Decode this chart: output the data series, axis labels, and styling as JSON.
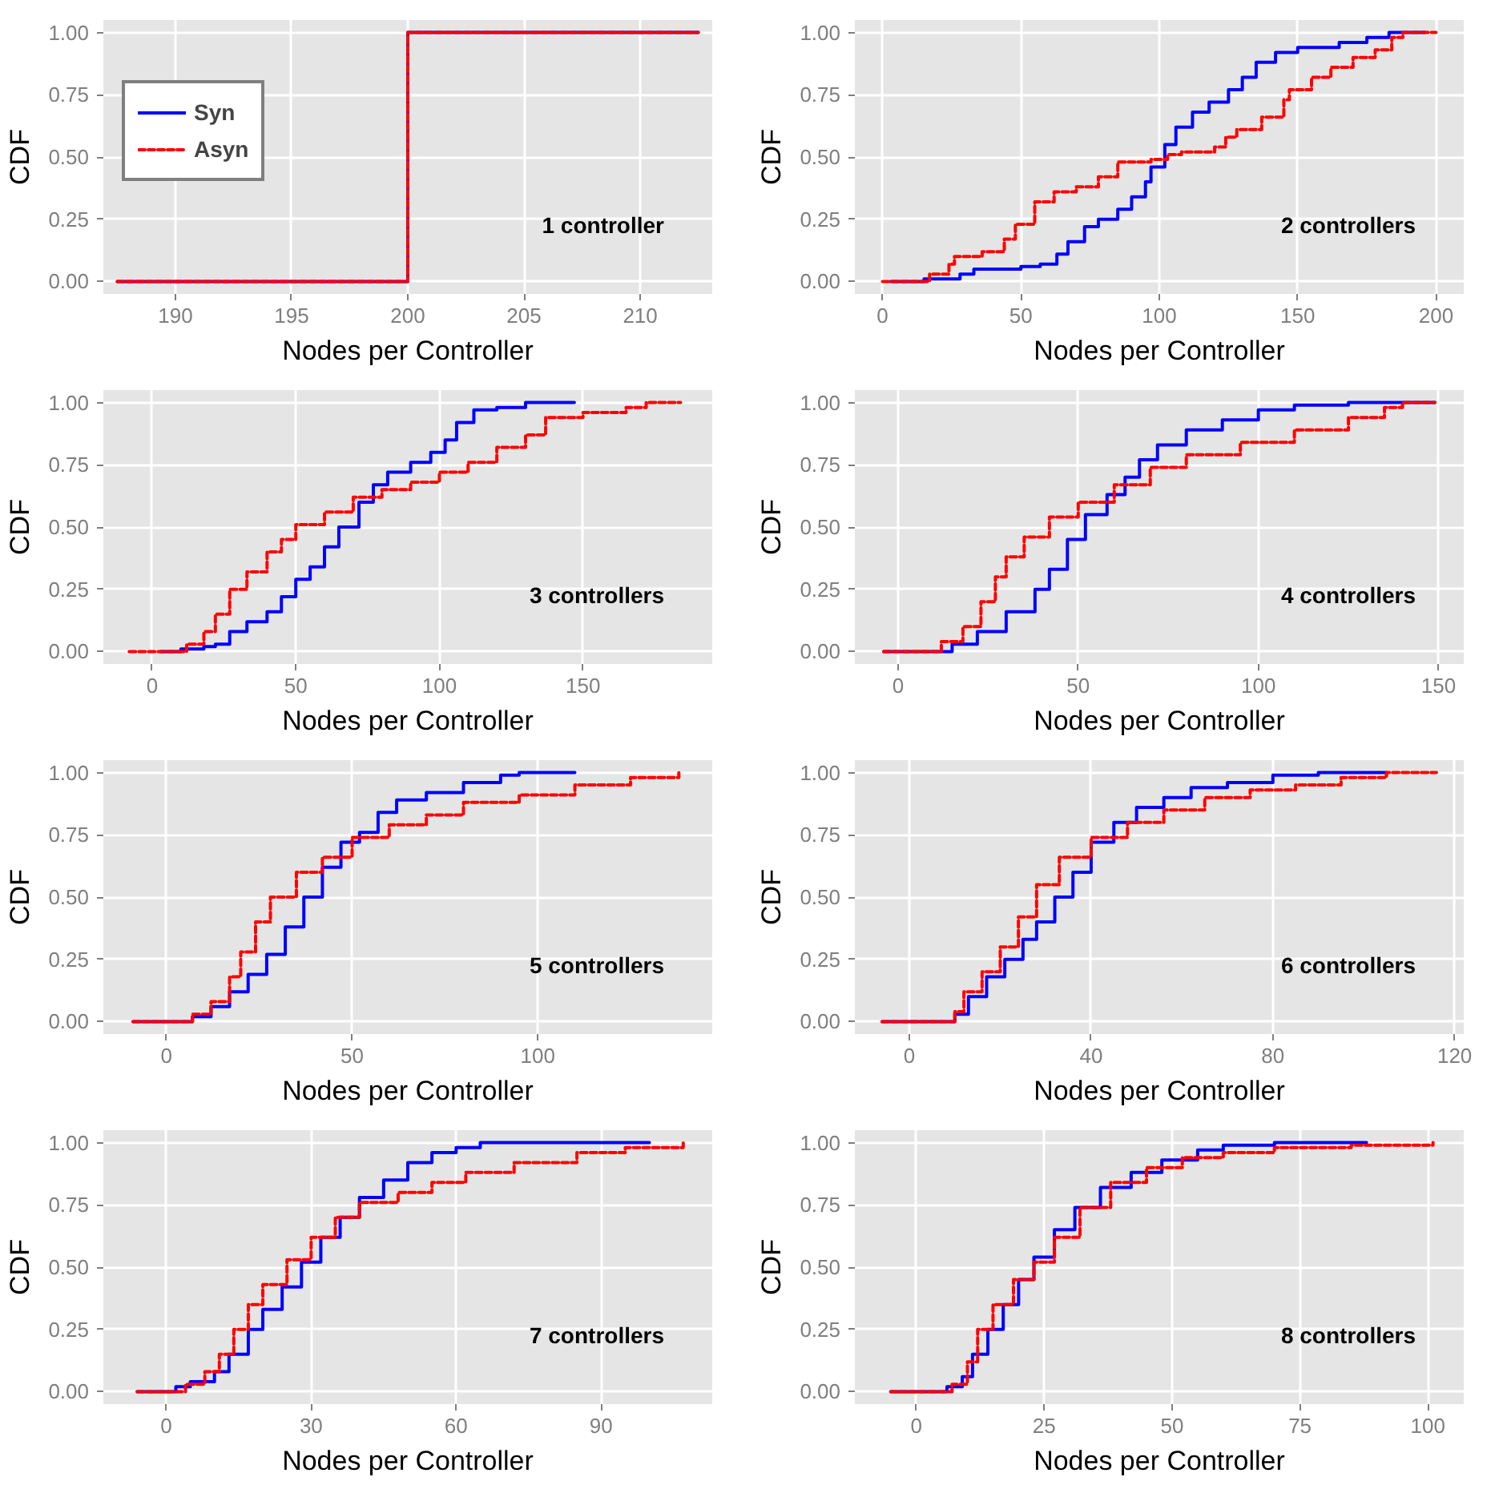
{
  "chart_data": [
    {
      "type": "step",
      "xlabel": "Nodes per Controller",
      "ylabel": "CDF",
      "annotations": [
        "1 controller"
      ],
      "xlim": [
        186.9,
        213.1
      ],
      "xticks": [
        190,
        195,
        200,
        205,
        210
      ],
      "ylim": [
        -0.05,
        1.05
      ],
      "yticks": [
        {
          "value": 0,
          "label": "0.00"
        },
        {
          "value": 0.25,
          "label": "0.25"
        },
        {
          "value": 0.5,
          "label": "0.50"
        },
        {
          "value": 0.75,
          "label": "0.75"
        },
        {
          "value": 1,
          "label": "1.00"
        }
      ],
      "grid": true,
      "legend": "top left",
      "series": [
        {
          "name": "Syn",
          "color": "#0000ff",
          "line_style": "solid",
          "x": [
            187.5,
            200,
            212.5
          ],
          "values": [
            0,
            1,
            1
          ]
        },
        {
          "name": "Asyn",
          "color": "#ff0000",
          "line_style": "dashed",
          "x": [
            187.5,
            200,
            212.5
          ],
          "values": [
            0,
            1,
            1
          ]
        }
      ]
    },
    {
      "type": "step",
      "xlabel": "Nodes per Controller",
      "ylabel": "CDF",
      "annotations": [
        "2 controllers"
      ],
      "xlim": [
        -10,
        210
      ],
      "xticks": [
        0,
        50,
        100,
        150,
        200
      ],
      "ylim": [
        -0.05,
        1.05
      ],
      "yticks": [
        {
          "value": 0,
          "label": "0.00"
        },
        {
          "value": 0.25,
          "label": "0.25"
        },
        {
          "value": 0.5,
          "label": "0.50"
        },
        {
          "value": 0.75,
          "label": "0.75"
        },
        {
          "value": 1,
          "label": "1.00"
        }
      ],
      "grid": true,
      "series": [
        {
          "color": "#0000ff",
          "line_style": "solid",
          "x": [
            3,
            15,
            28,
            33,
            50,
            57,
            63,
            67,
            73,
            78,
            85,
            90,
            95,
            97,
            102,
            106,
            112,
            118,
            125,
            130,
            135,
            142,
            150,
            165,
            175,
            183,
            196
          ],
          "values": [
            0,
            0.01,
            0.03,
            0.05,
            0.06,
            0.07,
            0.11,
            0.16,
            0.22,
            0.25,
            0.29,
            0.34,
            0.4,
            0.46,
            0.55,
            0.62,
            0.68,
            0.72,
            0.77,
            0.82,
            0.88,
            0.92,
            0.94,
            0.96,
            0.98,
            1,
            1
          ]
        },
        {
          "color": "#ff0000",
          "line_style": "dashed",
          "x": [
            0,
            13,
            17,
            24,
            26,
            36,
            44,
            48,
            55,
            62,
            70,
            78,
            85,
            97,
            103,
            108,
            120,
            124,
            128,
            137,
            145,
            147,
            155,
            162,
            170,
            178,
            184,
            188,
            200
          ],
          "values": [
            0,
            0,
            0.03,
            0.07,
            0.1,
            0.12,
            0.17,
            0.23,
            0.32,
            0.36,
            0.38,
            0.42,
            0.48,
            0.49,
            0.51,
            0.52,
            0.54,
            0.58,
            0.61,
            0.66,
            0.73,
            0.77,
            0.82,
            0.86,
            0.9,
            0.93,
            0.98,
            1,
            1
          ]
        }
      ]
    },
    {
      "type": "step",
      "xlabel": "Nodes per Controller",
      "ylabel": "CDF",
      "annotations": [
        "3 controllers"
      ],
      "xlim": [
        -17,
        195
      ],
      "xticks": [
        0,
        50,
        100,
        150
      ],
      "ylim": [
        -0.05,
        1.05
      ],
      "yticks": [
        {
          "value": 0,
          "label": "0.00"
        },
        {
          "value": 0.25,
          "label": "0.25"
        },
        {
          "value": 0.5,
          "label": "0.50"
        },
        {
          "value": 0.75,
          "label": "0.75"
        },
        {
          "value": 1,
          "label": "1.00"
        }
      ],
      "grid": true,
      "series": [
        {
          "color": "#0000ff",
          "line_style": "solid",
          "x": [
            3,
            10,
            18,
            22,
            27,
            33,
            40,
            45,
            50,
            55,
            60,
            65,
            72,
            77,
            82,
            90,
            97,
            102,
            106,
            112,
            120,
            130,
            147
          ],
          "values": [
            0,
            0.01,
            0.02,
            0.03,
            0.08,
            0.12,
            0.16,
            0.22,
            0.29,
            0.34,
            0.42,
            0.5,
            0.6,
            0.67,
            0.72,
            0.76,
            0.8,
            0.85,
            0.92,
            0.97,
            0.98,
            1,
            1
          ]
        },
        {
          "color": "#ff0000",
          "line_style": "dashed",
          "x": [
            -8,
            5,
            12,
            18,
            22,
            27,
            33,
            40,
            45,
            50,
            60,
            70,
            80,
            90,
            100,
            110,
            120,
            130,
            137,
            150,
            165,
            172,
            184
          ],
          "values": [
            0,
            0,
            0.03,
            0.08,
            0.15,
            0.25,
            0.32,
            0.4,
            0.45,
            0.51,
            0.56,
            0.62,
            0.65,
            0.68,
            0.72,
            0.76,
            0.82,
            0.87,
            0.94,
            0.96,
            0.98,
            1,
            1
          ]
        }
      ]
    },
    {
      "type": "step",
      "xlabel": "Nodes per Controller",
      "ylabel": "CDF",
      "annotations": [
        "4 controllers"
      ],
      "xlim": [
        -12,
        157
      ],
      "xticks": [
        0,
        50,
        100,
        150
      ],
      "ylim": [
        -0.05,
        1.05
      ],
      "yticks": [
        {
          "value": 0,
          "label": "0.00"
        },
        {
          "value": 0.25,
          "label": "0.25"
        },
        {
          "value": 0.5,
          "label": "0.50"
        },
        {
          "value": 0.75,
          "label": "0.75"
        },
        {
          "value": 1,
          "label": "1.00"
        }
      ],
      "grid": true,
      "series": [
        {
          "color": "#0000ff",
          "line_style": "solid",
          "x": [
            -4,
            8,
            15,
            22,
            30,
            38,
            42,
            47,
            52,
            58,
            63,
            67,
            72,
            80,
            90,
            100,
            110,
            125,
            149
          ],
          "values": [
            0,
            0,
            0.03,
            0.08,
            0.16,
            0.25,
            0.33,
            0.45,
            0.55,
            0.63,
            0.7,
            0.77,
            0.83,
            0.89,
            0.93,
            0.97,
            0.99,
            1,
            1
          ]
        },
        {
          "color": "#ff0000",
          "line_style": "dashed",
          "x": [
            -4,
            5,
            12,
            18,
            23,
            27,
            30,
            35,
            42,
            50,
            60,
            70,
            80,
            95,
            110,
            125,
            135,
            140,
            149
          ],
          "values": [
            0,
            0,
            0.04,
            0.1,
            0.2,
            0.3,
            0.38,
            0.46,
            0.54,
            0.6,
            0.67,
            0.74,
            0.79,
            0.84,
            0.89,
            0.94,
            0.98,
            1,
            1
          ]
        }
      ]
    },
    {
      "type": "step",
      "xlabel": "Nodes per Controller",
      "ylabel": "CDF",
      "annotations": [
        "5 controllers"
      ],
      "xlim": [
        -17,
        147
      ],
      "xticks": [
        0,
        50,
        100
      ],
      "ylim": [
        -0.05,
        1.05
      ],
      "yticks": [
        {
          "value": 0,
          "label": "0.00"
        },
        {
          "value": 0.25,
          "label": "0.25"
        },
        {
          "value": 0.5,
          "label": "0.50"
        },
        {
          "value": 0.75,
          "label": "0.75"
        },
        {
          "value": 1,
          "label": "1.00"
        }
      ],
      "grid": true,
      "series": [
        {
          "color": "#0000ff",
          "line_style": "solid",
          "x": [
            -9,
            3,
            7,
            12,
            17,
            22,
            27,
            32,
            37,
            42,
            47,
            52,
            57,
            62,
            70,
            80,
            90,
            95,
            110
          ],
          "values": [
            0,
            0,
            0.02,
            0.06,
            0.12,
            0.19,
            0.27,
            0.38,
            0.5,
            0.62,
            0.72,
            0.76,
            0.84,
            0.89,
            0.92,
            0.96,
            0.99,
            1,
            1
          ]
        },
        {
          "color": "#ff0000",
          "line_style": "dashed",
          "x": [
            -9,
            0,
            7,
            12,
            17,
            20,
            24,
            28,
            35,
            42,
            50,
            60,
            70,
            80,
            95,
            110,
            125,
            138
          ],
          "values": [
            0,
            0,
            0.03,
            0.08,
            0.18,
            0.28,
            0.4,
            0.5,
            0.6,
            0.66,
            0.74,
            0.79,
            0.83,
            0.88,
            0.91,
            0.95,
            0.98,
            1
          ]
        }
      ]
    },
    {
      "type": "step",
      "xlabel": "Nodes per Controller",
      "ylabel": "CDF",
      "annotations": [
        "6 controllers"
      ],
      "xlim": [
        -12,
        122
      ],
      "xticks": [
        0,
        40,
        80,
        120
      ],
      "ylim": [
        -0.05,
        1.05
      ],
      "yticks": [
        {
          "value": 0,
          "label": "0.00"
        },
        {
          "value": 0.25,
          "label": "0.25"
        },
        {
          "value": 0.5,
          "label": "0.50"
        },
        {
          "value": 0.75,
          "label": "0.75"
        },
        {
          "value": 1,
          "label": "1.00"
        }
      ],
      "grid": true,
      "series": [
        {
          "color": "#0000ff",
          "line_style": "solid",
          "x": [
            -6,
            3,
            10,
            13,
            17,
            21,
            25,
            28,
            32,
            36,
            40,
            45,
            50,
            56,
            62,
            70,
            80,
            90,
            105
          ],
          "values": [
            0,
            0,
            0.03,
            0.1,
            0.18,
            0.25,
            0.33,
            0.4,
            0.5,
            0.6,
            0.72,
            0.8,
            0.86,
            0.9,
            0.94,
            0.96,
            0.99,
            1,
            1
          ]
        },
        {
          "color": "#ff0000",
          "line_style": "dashed",
          "x": [
            -6,
            5,
            10,
            12,
            16,
            20,
            24,
            28,
            33,
            40,
            48,
            56,
            65,
            75,
            85,
            95,
            105,
            116
          ],
          "values": [
            0,
            0,
            0.04,
            0.12,
            0.2,
            0.3,
            0.42,
            0.55,
            0.66,
            0.74,
            0.8,
            0.85,
            0.9,
            0.93,
            0.95,
            0.98,
            1,
            1
          ]
        }
      ]
    },
    {
      "type": "step",
      "xlabel": "Nodes per Controller",
      "ylabel": "CDF",
      "annotations": [
        "7 controllers"
      ],
      "xlim": [
        -13,
        113
      ],
      "xticks": [
        0,
        30,
        60,
        90
      ],
      "ylim": [
        -0.05,
        1.05
      ],
      "yticks": [
        {
          "value": 0,
          "label": "0.00"
        },
        {
          "value": 0.25,
          "label": "0.25"
        },
        {
          "value": 0.5,
          "label": "0.50"
        },
        {
          "value": 0.75,
          "label": "0.75"
        },
        {
          "value": 1,
          "label": "1.00"
        }
      ],
      "grid": true,
      "series": [
        {
          "color": "#0000ff",
          "line_style": "solid",
          "x": [
            -6,
            0,
            2,
            5,
            10,
            13,
            17,
            20,
            24,
            28,
            32,
            36,
            40,
            45,
            50,
            55,
            60,
            65,
            100
          ],
          "values": [
            0,
            0,
            0.02,
            0.04,
            0.08,
            0.15,
            0.25,
            0.33,
            0.42,
            0.52,
            0.62,
            0.7,
            0.78,
            0.85,
            0.92,
            0.96,
            0.98,
            1,
            1
          ]
        },
        {
          "color": "#ff0000",
          "line_style": "dashed",
          "x": [
            -6,
            0,
            4,
            8,
            11,
            14,
            17,
            20,
            25,
            30,
            35,
            40,
            48,
            55,
            62,
            72,
            85,
            95,
            107
          ],
          "values": [
            0,
            0,
            0.03,
            0.08,
            0.15,
            0.25,
            0.35,
            0.43,
            0.53,
            0.62,
            0.7,
            0.76,
            0.8,
            0.84,
            0.88,
            0.92,
            0.96,
            0.98,
            1
          ]
        }
      ]
    },
    {
      "type": "step",
      "xlabel": "Nodes per Controller",
      "ylabel": "CDF",
      "annotations": [
        "8 controllers"
      ],
      "xlim": [
        -12,
        107
      ],
      "xticks": [
        0,
        25,
        50,
        75,
        100
      ],
      "ylim": [
        -0.05,
        1.05
      ],
      "yticks": [
        {
          "value": 0,
          "label": "0.00"
        },
        {
          "value": 0.25,
          "label": "0.25"
        },
        {
          "value": 0.5,
          "label": "0.50"
        },
        {
          "value": 0.75,
          "label": "0.75"
        },
        {
          "value": 1,
          "label": "1.00"
        }
      ],
      "grid": true,
      "series": [
        {
          "color": "#0000ff",
          "line_style": "solid",
          "x": [
            -5,
            3,
            6,
            9,
            11,
            14,
            17,
            20,
            23,
            27,
            31,
            36,
            42,
            48,
            55,
            60,
            70,
            88
          ],
          "values": [
            0,
            0,
            0.02,
            0.06,
            0.15,
            0.25,
            0.35,
            0.45,
            0.54,
            0.65,
            0.74,
            0.82,
            0.88,
            0.93,
            0.97,
            0.99,
            1,
            1
          ]
        },
        {
          "color": "#ff0000",
          "line_style": "dashed",
          "x": [
            -5,
            3,
            7,
            10,
            12,
            15,
            19,
            23,
            27,
            32,
            38,
            45,
            52,
            60,
            70,
            85,
            101
          ],
          "values": [
            0,
            0,
            0.03,
            0.12,
            0.25,
            0.35,
            0.45,
            0.52,
            0.62,
            0.74,
            0.84,
            0.9,
            0.94,
            0.96,
            0.98,
            0.99,
            1
          ]
        }
      ]
    }
  ]
}
